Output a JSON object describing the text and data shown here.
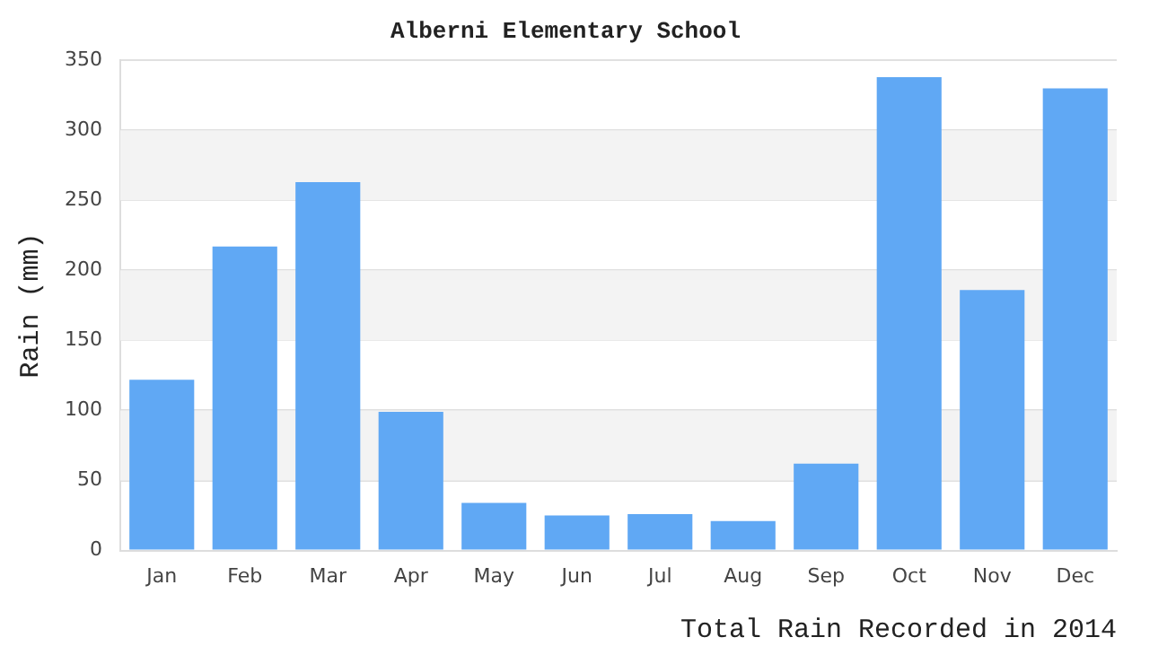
{
  "chart_data": {
    "type": "bar",
    "title": "Alberni Elementary School",
    "xlabel": "Total Rain Recorded in 2014",
    "ylabel": "Rain (mm)",
    "categories": [
      "Jan",
      "Feb",
      "Mar",
      "Apr",
      "May",
      "Jun",
      "Jul",
      "Aug",
      "Sep",
      "Oct",
      "Nov",
      "Dec"
    ],
    "values": [
      122,
      217,
      263,
      99,
      34,
      25,
      26,
      21,
      62,
      338,
      186,
      330
    ],
    "color": "#60a8f4",
    "ylim": [
      0,
      350
    ],
    "yticks": [
      0,
      50,
      100,
      150,
      200,
      250,
      300,
      350
    ],
    "grid": "y",
    "legend": false
  }
}
